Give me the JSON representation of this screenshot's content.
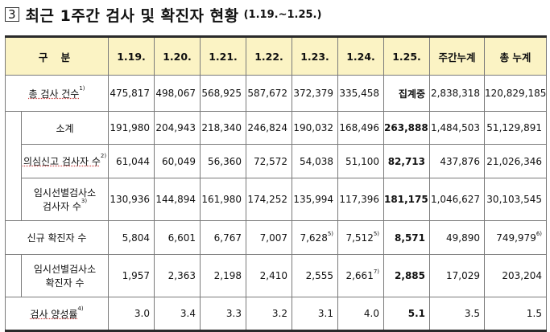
{
  "title": {
    "box": "3",
    "main": "최근 1주간 검사 및 확진자 현황",
    "range": "(1.19.~1.25.)"
  },
  "table": {
    "header": {
      "category": "구 분",
      "dates": [
        "1.19.",
        "1.20.",
        "1.21.",
        "1.22.",
        "1.23.",
        "1.24.",
        "1.25."
      ],
      "weekly_total": "주간누계",
      "cumulative": "총 누계"
    },
    "rows": [
      {
        "label": "총 검사 건수",
        "note": "1)",
        "values": [
          "475,817",
          "498,067",
          "568,925",
          "587,672",
          "372,379",
          "335,458",
          "집계중"
        ],
        "weekly": "2,838,318",
        "total": "120,829,185"
      },
      {
        "label": "소계",
        "values": [
          "191,980",
          "204,943",
          "218,340",
          "246,824",
          "190,032",
          "168,496",
          "263,888"
        ],
        "weekly": "1,484,503",
        "total": "51,129,891"
      },
      {
        "label": "의심신고 검사자 수",
        "note": "2)",
        "values": [
          "61,044",
          "60,049",
          "56,360",
          "72,572",
          "54,038",
          "51,100",
          "82,713"
        ],
        "weekly": "437,876",
        "total": "21,026,346"
      },
      {
        "label_line1": "임시선별검사소",
        "label_line2": "검사자 수",
        "note": "3)",
        "values": [
          "130,936",
          "144,894",
          "161,980",
          "174,252",
          "135,994",
          "117,396",
          "181,175"
        ],
        "weekly": "1,046,627",
        "total": "30,103,545"
      },
      {
        "label": "신규 확진자 수",
        "values": [
          "5,804",
          "6,601",
          "6,767",
          "7,007",
          "7,628",
          "7,512",
          "8,571"
        ],
        "value_notes": [
          "",
          "",
          "",
          "",
          "5)",
          "5)",
          ""
        ],
        "weekly": "49,890",
        "total": "749,979",
        "total_note": "6)"
      },
      {
        "label_line1": "임시선별검사소",
        "label_line2": "확진자 수",
        "values": [
          "1,957",
          "2,363",
          "2,198",
          "2,410",
          "2,555",
          "2,661",
          "2,885"
        ],
        "value_notes": [
          "",
          "",
          "",
          "",
          "",
          "7)",
          ""
        ],
        "weekly": "17,029",
        "total": "203,204"
      },
      {
        "label": "검사 양성률",
        "note": "4)",
        "values": [
          "3.0",
          "3.4",
          "3.3",
          "3.2",
          "3.1",
          "4.0",
          "5.1"
        ],
        "weekly": "3.5",
        "total": "1.5"
      }
    ]
  }
}
